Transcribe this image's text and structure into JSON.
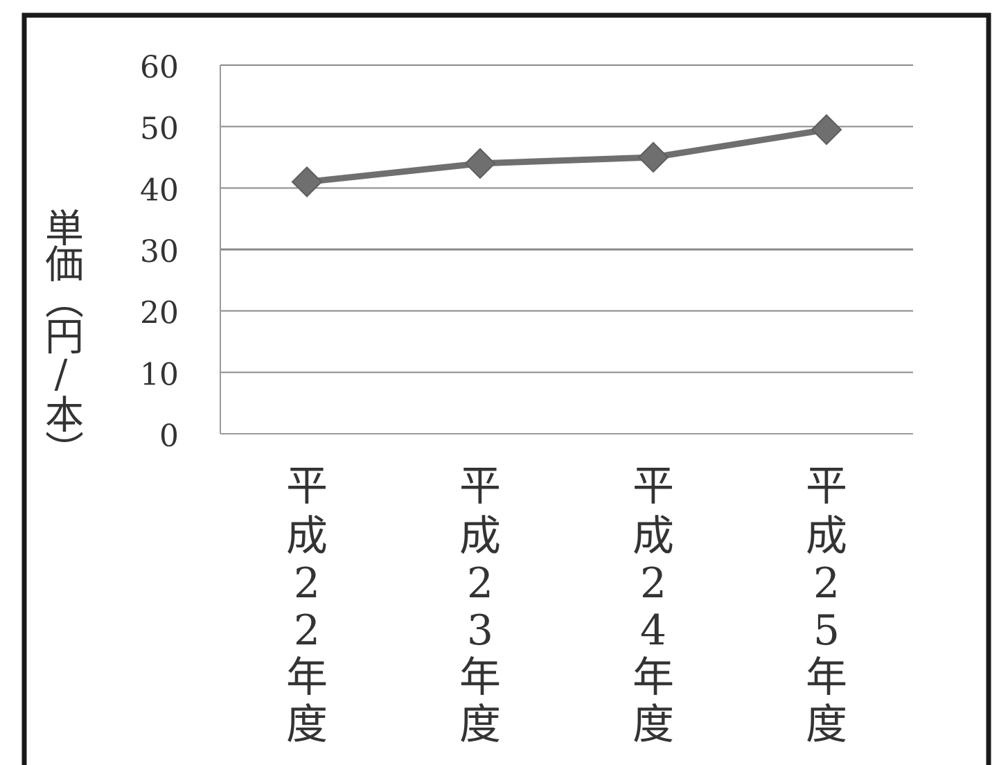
{
  "chart_data": {
    "type": "line",
    "title": "",
    "xlabel": "",
    "ylabel": "単価（円/本）",
    "categories": [
      "平成22年度",
      "平成23年度",
      "平成24年度",
      "平成25年度"
    ],
    "series": [
      {
        "values": [
          41,
          44,
          45,
          49.5
        ]
      }
    ],
    "ylim": [
      0,
      60
    ],
    "yticks": [
      0,
      10,
      20,
      30,
      40,
      50,
      60
    ],
    "grid": true,
    "legend": "none",
    "marker": "diamond",
    "colors": {
      "line": "#6f6f6f",
      "marker": "#6f6f6f",
      "grid": "#8a8a8a",
      "frame": "#1a1a1a",
      "text": "#333333"
    }
  }
}
